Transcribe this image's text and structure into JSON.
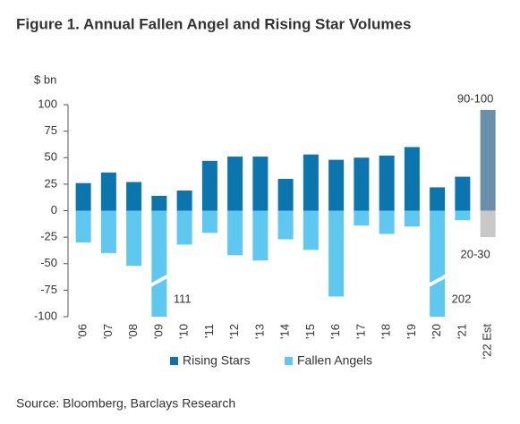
{
  "chart_data": {
    "type": "bar",
    "title": "Figure 1. Annual Fallen Angel and Rising Star Volumes",
    "y_label": "$ bn",
    "source": "Source: Bloomberg, Barclays Research",
    "categories": [
      "'06",
      "'07",
      "'08",
      "'09",
      "'10",
      "'11",
      "'12",
      "'13",
      "'14",
      "'15",
      "'16",
      "'17",
      "'18",
      "'19",
      "'20",
      "'21",
      "'22 Est"
    ],
    "series": [
      {
        "name": "Rising Stars",
        "color": "#0b76ae",
        "point_colors": [
          null,
          null,
          null,
          null,
          null,
          null,
          null,
          null,
          null,
          null,
          null,
          null,
          null,
          null,
          null,
          null,
          "#6a8fab"
        ],
        "values": [
          26,
          36,
          27,
          14,
          19,
          47,
          51,
          51,
          30,
          53,
          48,
          50,
          52,
          60,
          22,
          32,
          95
        ],
        "value_labels": [
          null,
          null,
          null,
          null,
          null,
          null,
          null,
          null,
          null,
          null,
          null,
          null,
          null,
          null,
          null,
          null,
          "90-100"
        ]
      },
      {
        "name": "Fallen Angels",
        "color": "#5ec8f0",
        "point_colors": [
          null,
          null,
          null,
          null,
          null,
          null,
          null,
          null,
          null,
          null,
          null,
          null,
          null,
          null,
          null,
          null,
          "#c9c9c9"
        ],
        "values": [
          -30,
          -40,
          -52,
          -111,
          -32,
          -21,
          -42,
          -47,
          -27,
          -37,
          -81,
          -14,
          -22,
          -15,
          -202,
          -9,
          -25
        ],
        "value_labels": [
          null,
          null,
          null,
          "111",
          null,
          null,
          null,
          null,
          null,
          null,
          null,
          null,
          null,
          null,
          "202",
          null,
          "20-30"
        ]
      }
    ],
    "ylim": [
      -100,
      100
    ],
    "yticks": [
      -100,
      -75,
      -50,
      -25,
      0,
      25,
      50,
      75,
      100
    ],
    "legend": "bottom"
  }
}
